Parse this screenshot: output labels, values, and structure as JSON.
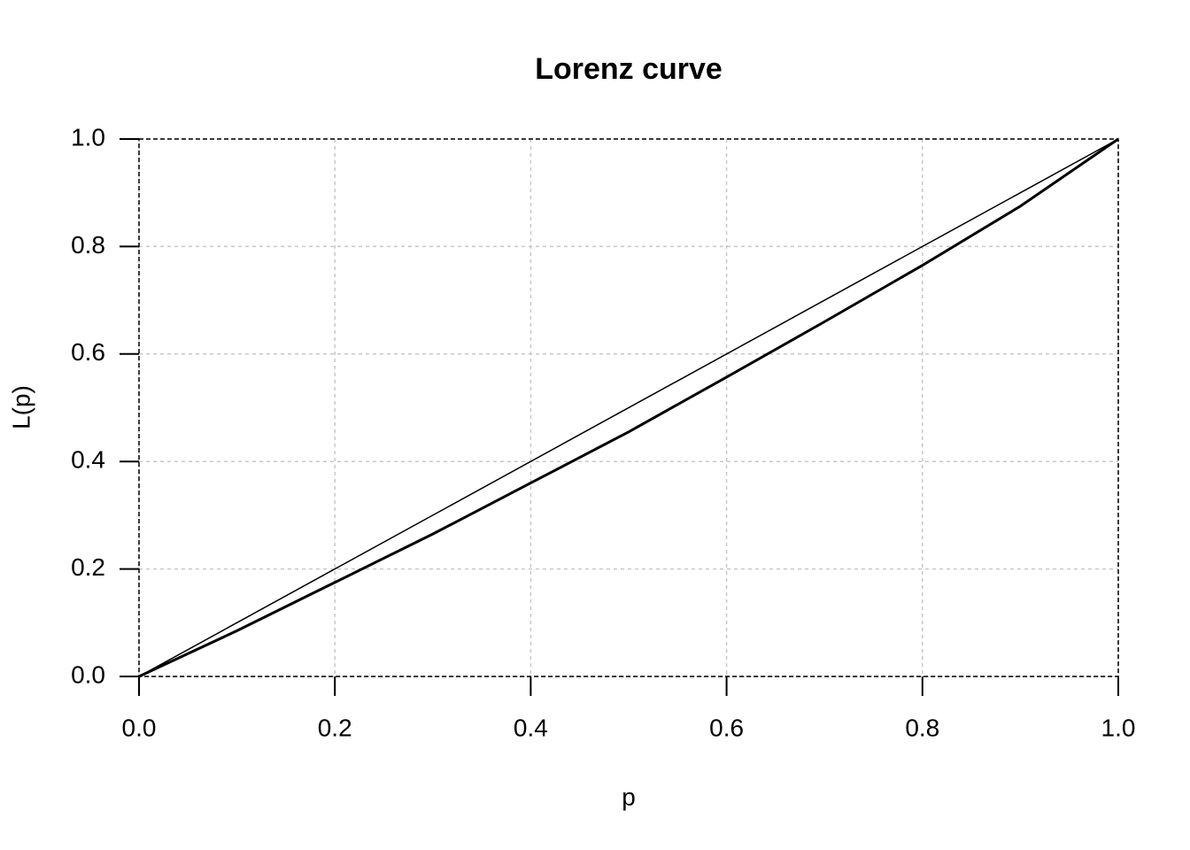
{
  "chart_data": {
    "type": "line",
    "title": "Lorenz curve",
    "x_label": "p",
    "y_label": "L(p)",
    "series": [
      {
        "color": "#000000",
        "line_width": 1.5,
        "x": [
          0,
          1
        ],
        "values": [
          0,
          1
        ]
      },
      {
        "color": "#000000",
        "line_width": 3,
        "x": [
          0,
          0.1,
          0.2,
          0.3,
          0.4,
          0.5,
          0.6,
          0.7,
          0.8,
          0.9,
          1
        ],
        "values": [
          0,
          0.085,
          0.175,
          0.265,
          0.36,
          0.455,
          0.557,
          0.66,
          0.765,
          0.875,
          1
        ]
      }
    ],
    "xlim": [
      0,
      1
    ],
    "ylim": [
      0,
      1
    ],
    "xticks": [
      {
        "value": 0,
        "label": "0.0"
      },
      0.2,
      0.4,
      0.6,
      0.8,
      {
        "value": 1,
        "label": "1.0"
      }
    ],
    "yticks": [
      {
        "value": 0,
        "label": "0.0"
      },
      0.2,
      0.4,
      0.6,
      0.8,
      {
        "value": 1,
        "label": "1.0"
      }
    ],
    "grid": true
  }
}
